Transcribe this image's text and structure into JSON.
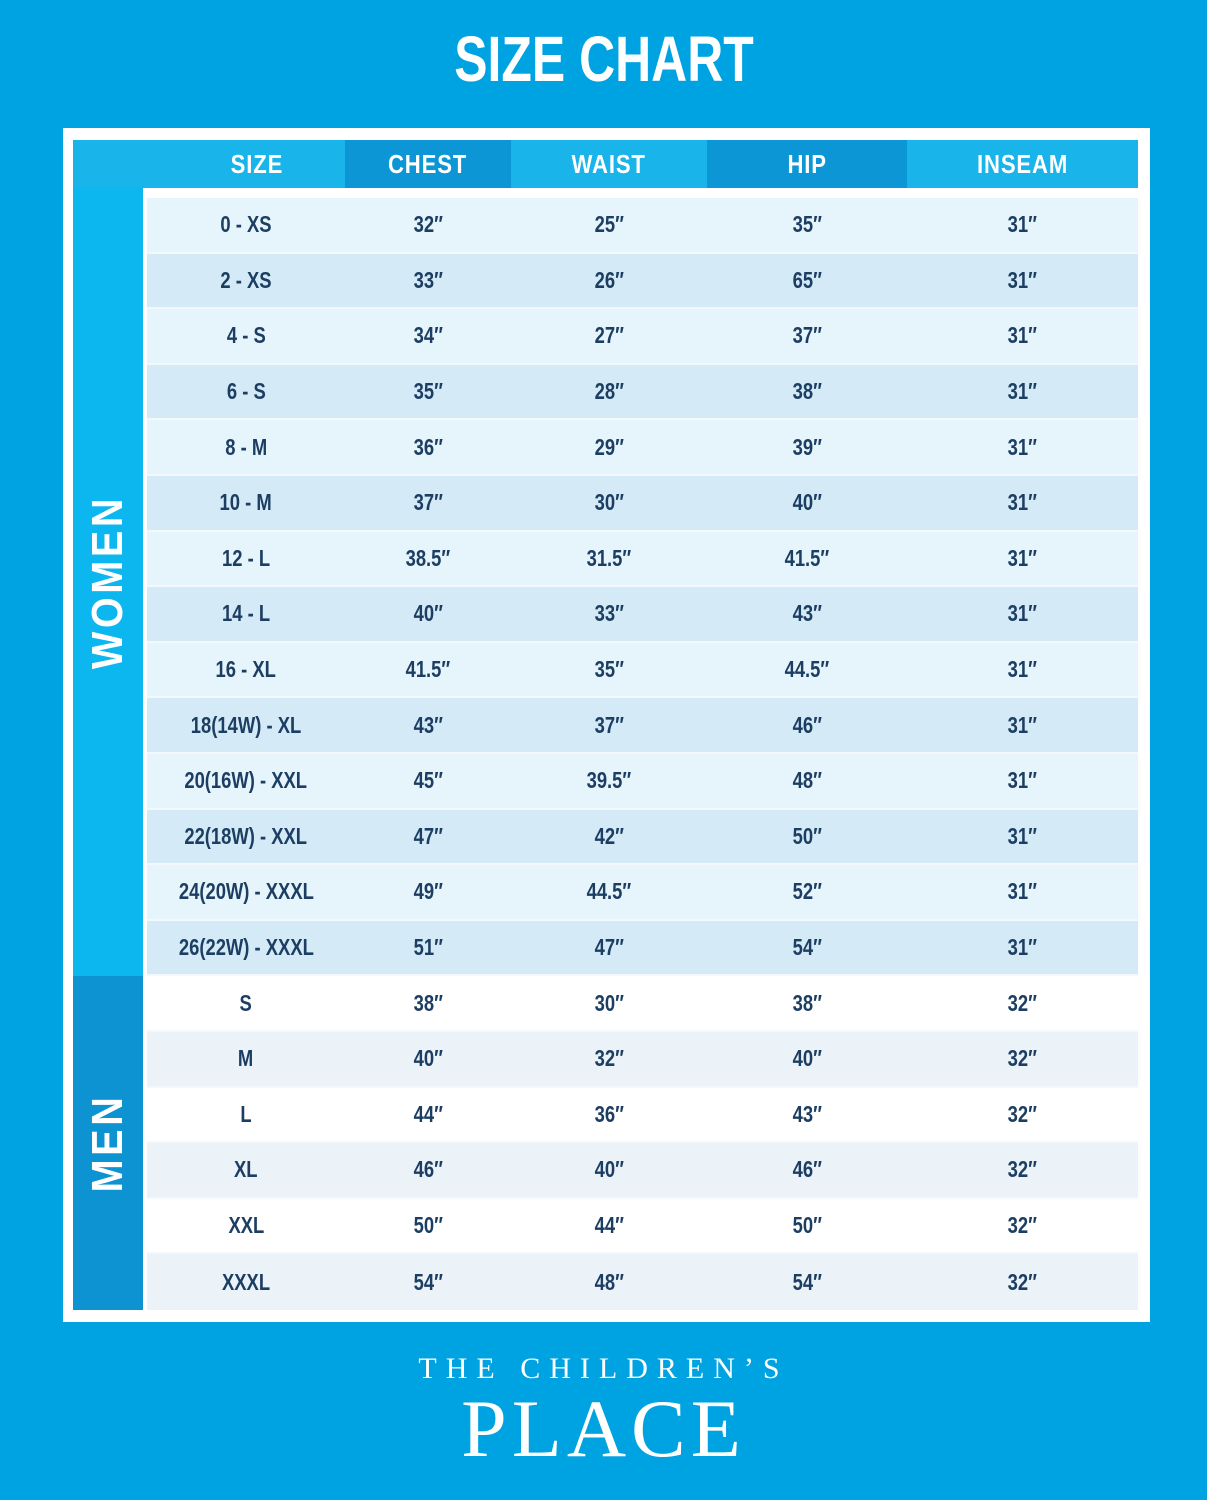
{
  "page": {
    "title": "SIZE CHART"
  },
  "brand": {
    "name_top": "THE CHILDREN’S",
    "name_bottom": "PLACE"
  },
  "chart_data": {
    "type": "table",
    "title": "SIZE CHART",
    "columns": [
      "SIZE",
      "CHEST",
      "WAIST",
      "HIP",
      "INSEAM"
    ],
    "sections": [
      {
        "label": "WOMEN",
        "rows": [
          [
            "0 - XS",
            "32″",
            "25″",
            "35″",
            "31″"
          ],
          [
            "2 - XS",
            "33″",
            "26″",
            "65″",
            "31″"
          ],
          [
            "4 - S",
            "34″",
            "27″",
            "37″",
            "31″"
          ],
          [
            "6 - S",
            "35″",
            "28″",
            "38″",
            "31″"
          ],
          [
            "8 - M",
            "36″",
            "29″",
            "39″",
            "31″"
          ],
          [
            "10 - M",
            "37″",
            "30″",
            "40″",
            "31″"
          ],
          [
            "12 - L",
            "38.5″",
            "31.5″",
            "41.5″",
            "31″"
          ],
          [
            "14 - L",
            "40″",
            "33″",
            "43″",
            "31″"
          ],
          [
            "16 - XL",
            "41.5″",
            "35″",
            "44.5″",
            "31″"
          ],
          [
            "18(14W) - XL",
            "43″",
            "37″",
            "46″",
            "31″"
          ],
          [
            "20(16W) - XXL",
            "45″",
            "39.5″",
            "48″",
            "31″"
          ],
          [
            "22(18W) - XXL",
            "47″",
            "42″",
            "50″",
            "31″"
          ],
          [
            "24(20W) - XXXL",
            "49″",
            "44.5″",
            "52″",
            "31″"
          ],
          [
            "26(22W) - XXXL",
            "51″",
            "47″",
            "54″",
            "31″"
          ]
        ]
      },
      {
        "label": "MEN",
        "rows": [
          [
            "S",
            "38″",
            "30″",
            "38″",
            "32″"
          ],
          [
            "M",
            "40″",
            "32″",
            "40″",
            "32″"
          ],
          [
            "L",
            "44″",
            "36″",
            "43″",
            "32″"
          ],
          [
            "XL",
            "46″",
            "40″",
            "46″",
            "32″"
          ],
          [
            "XXL",
            "50″",
            "44″",
            "50″",
            "32″"
          ],
          [
            "XXXL",
            "54″",
            "48″",
            "54″",
            "32″"
          ]
        ]
      }
    ]
  },
  "colors": {
    "background": "#00a3e1",
    "header_light": "#19b4e9",
    "header_dark": "#0c96d6",
    "women_band": "#0cb6ee",
    "men_band": "#0d93d2",
    "row_light": "#e6f4fb",
    "row_shaded": "#d4eaf6",
    "men_row_light": "#ffffff",
    "men_row_shaded": "#ebf2f8",
    "text": "#1d3e63"
  }
}
